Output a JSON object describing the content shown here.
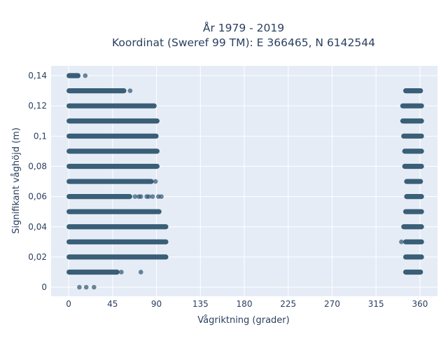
{
  "chart_data": {
    "type": "scatter",
    "title_line1": "År 1979 - 2019",
    "title_line2": "Koordinat (Sweref 99 TM): E 366465, N 6142544",
    "xlabel": "Vågriktning (grader)",
    "ylabel": "Signifikant våghöjd (m)",
    "xlim": [
      -18,
      378
    ],
    "ylim": [
      -0.006,
      0.1465
    ],
    "x_ticks": [
      0,
      45,
      90,
      135,
      180,
      225,
      270,
      315,
      360
    ],
    "x_tick_labels": [
      "0",
      "45",
      "90",
      "135",
      "180",
      "225",
      "270",
      "315",
      "360"
    ],
    "y_ticks": [
      0,
      0.02,
      0.04,
      0.06,
      0.08,
      0.1,
      0.12,
      0.14
    ],
    "y_tick_labels": [
      "0",
      "0,02",
      "0,04",
      "0,06",
      "0,08",
      "0,1",
      "0,12",
      "0,14"
    ],
    "grid": true,
    "marker_color": "#2f5670",
    "plot_bg": "#e5ecf6",
    "bands": [
      {
        "y": 0.14,
        "x_min": 0,
        "x_max": 10,
        "x2_min": null,
        "x2_max": null,
        "extras": [
          17
        ]
      },
      {
        "y": 0.13,
        "x_min": 0,
        "x_max": 57,
        "x2_min": 345,
        "x2_max": 361,
        "extras": [
          63
        ]
      },
      {
        "y": 0.12,
        "x_min": 0,
        "x_max": 88,
        "x2_min": 342,
        "x2_max": 362,
        "extras": []
      },
      {
        "y": 0.11,
        "x_min": 0,
        "x_max": 91,
        "x2_min": 342,
        "x2_max": 362,
        "extras": []
      },
      {
        "y": 0.1,
        "x_min": 0,
        "x_max": 90,
        "x2_min": 343,
        "x2_max": 362,
        "extras": []
      },
      {
        "y": 0.09,
        "x_min": 0,
        "x_max": 91,
        "x2_min": 344,
        "x2_max": 362,
        "extras": []
      },
      {
        "y": 0.08,
        "x_min": 0,
        "x_max": 91,
        "x2_min": 344,
        "x2_max": 362,
        "extras": []
      },
      {
        "y": 0.07,
        "x_min": 0,
        "x_max": 85,
        "x2_min": 346,
        "x2_max": 361,
        "extras": [
          89
        ]
      },
      {
        "y": 0.06,
        "x_min": 0,
        "x_max": 63,
        "x2_min": 346,
        "x2_max": 362,
        "extras": [
          68,
          72,
          74,
          80,
          82,
          86,
          92,
          95
        ]
      },
      {
        "y": 0.05,
        "x_min": 0,
        "x_max": 93,
        "x2_min": 345,
        "x2_max": 362,
        "extras": []
      },
      {
        "y": 0.04,
        "x_min": 0,
        "x_max": 100,
        "x2_min": 343,
        "x2_max": 362,
        "extras": []
      },
      {
        "y": 0.03,
        "x_min": 0,
        "x_max": 100,
        "x2_min": 345,
        "x2_max": 362,
        "extras": [
          341
        ]
      },
      {
        "y": 0.02,
        "x_min": 0,
        "x_max": 100,
        "x2_min": 345,
        "x2_max": 362,
        "extras": []
      },
      {
        "y": 0.01,
        "x_min": 0,
        "x_max": 50,
        "x2_min": 345,
        "x2_max": 361,
        "extras": [
          54,
          74
        ]
      },
      {
        "y": 0.0,
        "x_min": null,
        "x_max": null,
        "x2_min": null,
        "x2_max": null,
        "extras": [
          11,
          18,
          26
        ]
      }
    ]
  }
}
